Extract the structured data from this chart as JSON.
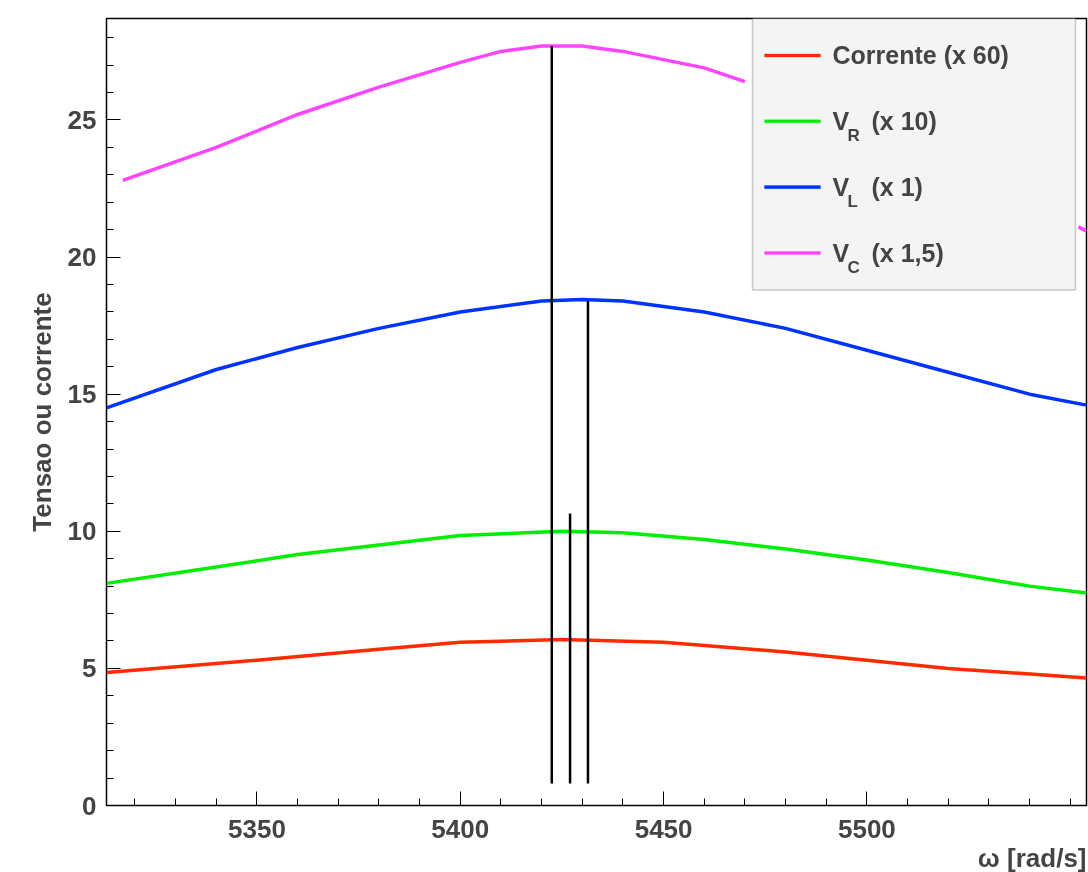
{
  "chart_data": {
    "type": "line",
    "xlabel": "ω [rad/s]",
    "ylabel": "Tensao ou corrente",
    "xlim": [
      5313,
      5554
    ],
    "ylim": [
      0,
      28.7
    ],
    "xticks": [
      {
        "value": 5320,
        "label": null
      },
      {
        "value": 5330,
        "label": null
      },
      {
        "value": 5340,
        "label": null
      },
      5350,
      {
        "value": 5360,
        "label": null
      },
      {
        "value": 5370,
        "label": null
      },
      {
        "value": 5380,
        "label": null
      },
      {
        "value": 5390,
        "label": null
      },
      5400,
      {
        "value": 5410,
        "label": null
      },
      {
        "value": 5420,
        "label": null
      },
      {
        "value": 5430,
        "label": null
      },
      {
        "value": 5440,
        "label": null
      },
      5450,
      {
        "value": 5460,
        "label": null
      },
      {
        "value": 5470,
        "label": null
      },
      {
        "value": 5480,
        "label": null
      },
      {
        "value": 5490,
        "label": null
      },
      5500,
      {
        "value": 5510,
        "label": null
      },
      {
        "value": 5520,
        "label": null
      },
      {
        "value": 5530,
        "label": null
      },
      {
        "value": 5540,
        "label": null
      },
      {
        "value": 5550,
        "label": null
      }
    ],
    "yticks": [
      0,
      {
        "value": 1,
        "label": null
      },
      {
        "value": 2,
        "label": null
      },
      {
        "value": 3,
        "label": null
      },
      {
        "value": 4,
        "label": null
      },
      5,
      {
        "value": 6,
        "label": null
      },
      {
        "value": 7,
        "label": null
      },
      {
        "value": 8,
        "label": null
      },
      {
        "value": 9,
        "label": null
      },
      10,
      {
        "value": 11,
        "label": null
      },
      {
        "value": 12,
        "label": null
      },
      {
        "value": 13,
        "label": null
      },
      {
        "value": 14,
        "label": null
      },
      15,
      {
        "value": 16,
        "label": null
      },
      {
        "value": 17,
        "label": null
      },
      {
        "value": 18,
        "label": null
      },
      {
        "value": 19,
        "label": null
      },
      20,
      {
        "value": 21,
        "label": null
      },
      {
        "value": 22,
        "label": null
      },
      {
        "value": 23,
        "label": null
      },
      {
        "value": 24,
        "label": null
      },
      25,
      {
        "value": 26,
        "label": null
      },
      {
        "value": 27,
        "label": null
      },
      {
        "value": 28,
        "label": null
      }
    ],
    "grid": false,
    "legend": "top right",
    "marker": "none",
    "line_style": "solid",
    "series": [
      {
        "name": "Corrente (x 60)",
        "color": "#ff2a00",
        "x": [
          5313,
          5350,
          5380,
          5400,
          5425,
          5450,
          5480,
          5500,
          5520,
          5554
        ],
        "values": [
          4.85,
          5.3,
          5.7,
          5.95,
          6.05,
          5.95,
          5.6,
          5.3,
          5.0,
          4.65
        ]
      },
      {
        "name": "V$_{R}$ (x 10)",
        "color": "#00ee00",
        "x": [
          5313,
          5340,
          5360,
          5380,
          5400,
          5425,
          5440,
          5460,
          5480,
          5500,
          5520,
          5540,
          5554
        ],
        "values": [
          8.1,
          8.7,
          9.15,
          9.5,
          9.85,
          10.0,
          9.95,
          9.7,
          9.35,
          8.95,
          8.5,
          8.0,
          7.75
        ]
      },
      {
        "name": "V$_{L}$ (x 1)",
        "color": "#0033ff",
        "x": [
          5313,
          5340,
          5360,
          5380,
          5400,
          5420,
          5430,
          5440,
          5460,
          5480,
          5500,
          5520,
          5540,
          5554
        ],
        "values": [
          14.5,
          15.9,
          16.7,
          17.4,
          18.0,
          18.4,
          18.45,
          18.4,
          18.0,
          17.4,
          16.6,
          15.8,
          15.0,
          14.6
        ]
      },
      {
        "name": "V$_{C}$ (x 1,5)",
        "color": "#ff44ff",
        "x": [
          5317,
          5340,
          5360,
          5380,
          5400,
          5410,
          5420,
          5430,
          5440,
          5460,
          5470,
          5500,
          5552,
          5554
        ],
        "values": [
          22.8,
          24.0,
          25.2,
          26.2,
          27.1,
          27.5,
          27.7,
          27.7,
          27.5,
          26.9,
          26.4,
          null,
          21.1,
          20.95
        ]
      },
      {
        "color": "#000000",
        "x": [
          5422.5,
          5422.5
        ],
        "values": [
          0.8,
          27.7
        ]
      },
      {
        "color": "#000000",
        "x": [
          5427,
          5427
        ],
        "values": [
          0.8,
          10.65
        ]
      },
      {
        "color": "#000000",
        "x": [
          5431.4,
          5431.4
        ],
        "values": [
          0.8,
          18.4
        ]
      }
    ]
  }
}
